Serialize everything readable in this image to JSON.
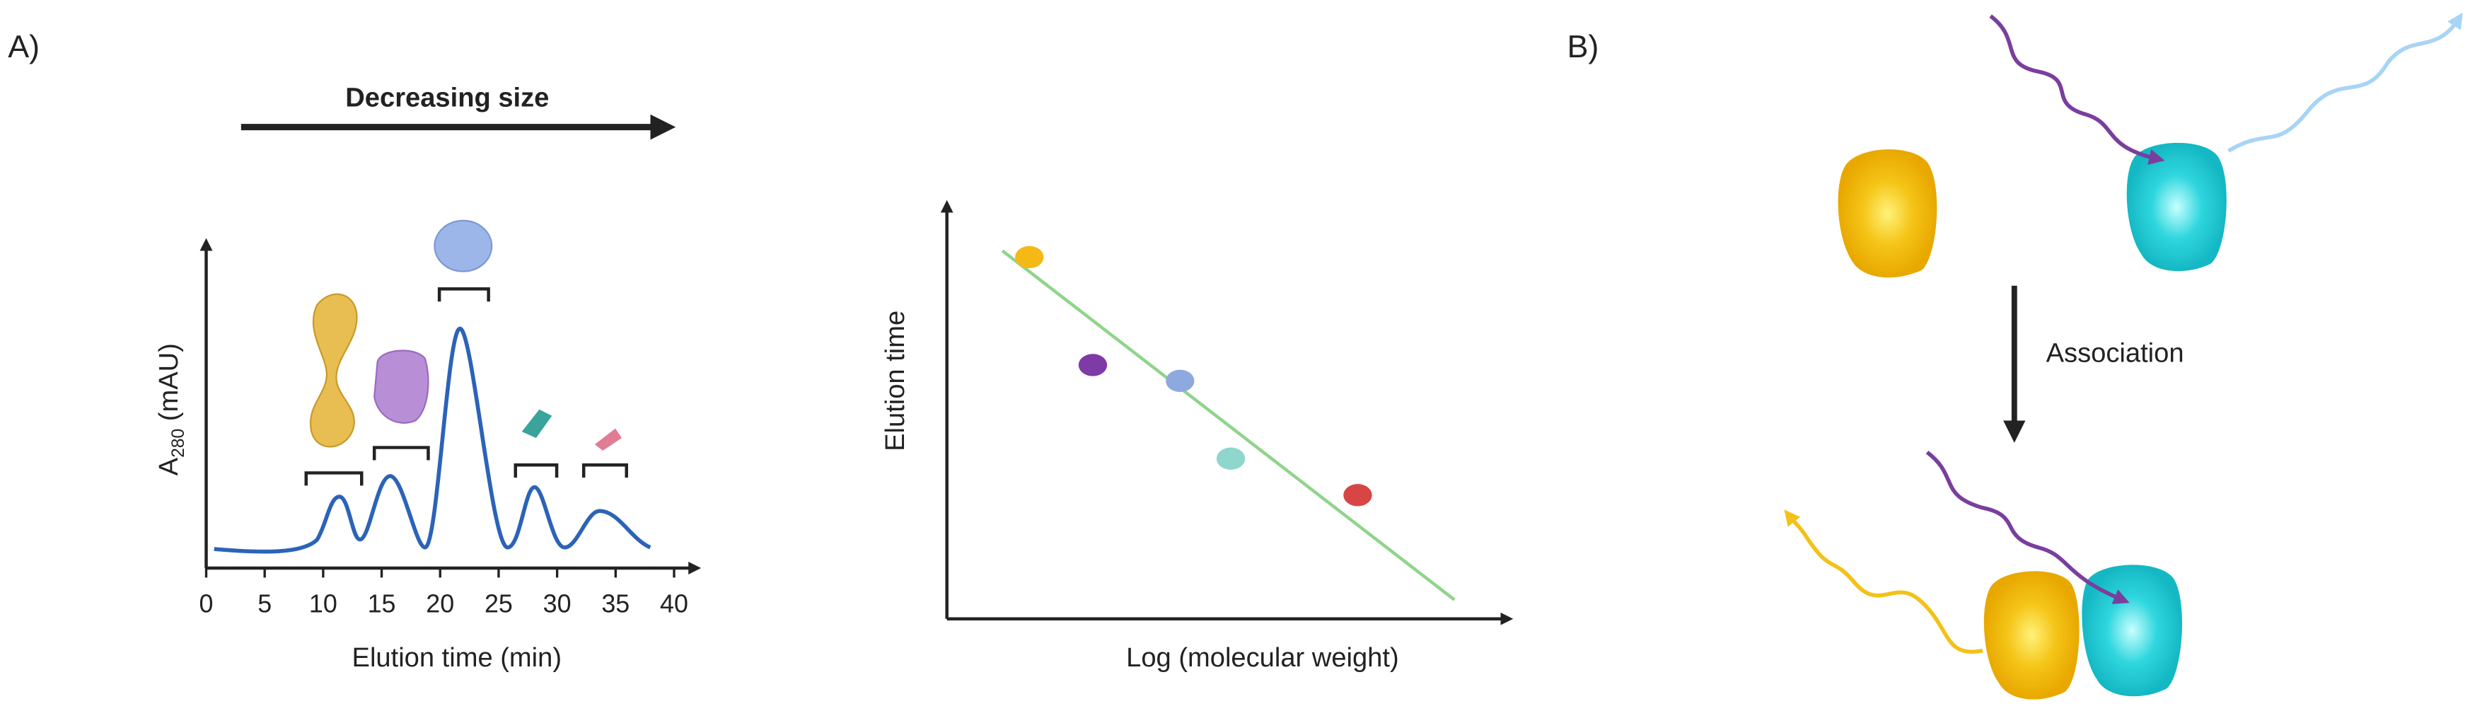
{
  "panel_a": {
    "label": "A)",
    "arrow_label": "Decreasing size",
    "chromatogram": {
      "y_label_main": "A",
      "y_label_sub": "280",
      "y_label_unit": " (mAU)",
      "x_label": "Elution time (min)",
      "xticks": [
        0,
        5,
        10,
        15,
        20,
        25,
        30,
        35,
        40
      ]
    },
    "calibration": {
      "y_label": "Elution time",
      "x_label": "Log (molecular weight)"
    }
  },
  "panel_b": {
    "label": "B)",
    "arrow_label": "Association"
  }
}
